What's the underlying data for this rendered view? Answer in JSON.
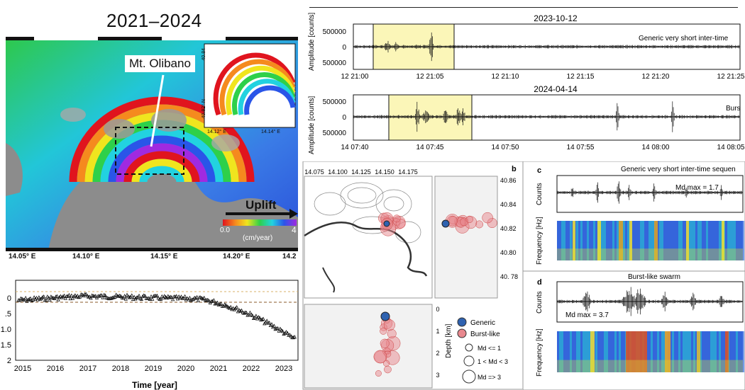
{
  "title": "2021–2024",
  "map": {
    "label_olibano": "Mt. Olibano",
    "uplift_label": "Uplift",
    "cbar_min": "0.0",
    "cbar_max": "4",
    "cbar_unit": "(cm/year)",
    "lon_ticks": [
      "14.05° E",
      "14.10° E",
      "14.15° E",
      "14.20° E",
      "14.2"
    ],
    "inset_lat_ticks": [
      "40.84",
      "40.82° N"
    ],
    "inset_lon_ticks": [
      "14.12° E",
      "14.14° E"
    ]
  },
  "timeseries": {
    "yticks": [
      "0",
      ".5",
      "1.0",
      "1.5",
      "2"
    ],
    "xticks": [
      "2015",
      "2016",
      "2017",
      "2018",
      "2019",
      "2020",
      "2021",
      "2022",
      "2023"
    ],
    "xlabel": "Time [year]"
  },
  "wave1": {
    "title": "2023-10-12",
    "ylabel": "Amplitude [counts]",
    "yticks": [
      "500000",
      "0",
      "500000"
    ],
    "xticks": [
      "12 21:00",
      "12 21:05",
      "12 21:10",
      "12 21:15",
      "12 21:20",
      "12 21:25"
    ],
    "legend": "Generic very short inter-time"
  },
  "wave2": {
    "title": "2024-04-14",
    "ylabel": "Amplitude [counts]",
    "yticks": [
      "500000",
      "0",
      "500000"
    ],
    "xticks": [
      "14 07:40",
      "14 07:45",
      "14 07:50",
      "14 07:55",
      "14 08:00",
      "14 08:05"
    ],
    "legend": "Burs"
  },
  "panel_b": {
    "label": "b",
    "lon_ticks": [
      "14.075",
      "14.100",
      "14.125",
      "14.150",
      "14.175"
    ],
    "lat_ticks": [
      "40.86",
      "40.84",
      "40.82",
      "40.80",
      "40. 78"
    ],
    "depth_ticks": [
      "0",
      "1",
      "2",
      "3"
    ],
    "depth_label": "Depth [km]",
    "legend": [
      "Generic",
      "Burst-like",
      "Md <= 1",
      "1 < Md < 3",
      "Md => 3"
    ]
  },
  "panel_c": {
    "label": "c",
    "title": "Generic very short inter-time sequen",
    "md": "Md max = 1.7",
    "ylabel_top": "Counts",
    "ylabel_bottom": "Frequency [Hz]"
  },
  "panel_d": {
    "label": "d",
    "title": "Burst-like swarm",
    "md": "Md max = 3.7",
    "ylabel_top": "Counts",
    "ylabel_bottom": "Frequency [Hz]"
  },
  "colors": {
    "highlight": "#fbf6b8",
    "generic": "#2f62b0",
    "burst": "#e8888e"
  }
}
